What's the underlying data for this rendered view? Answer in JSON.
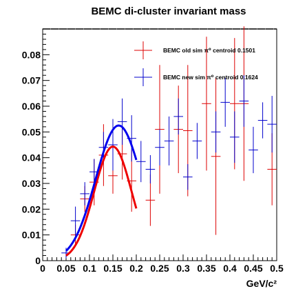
{
  "chart_data": {
    "type": "scatter",
    "title": "BEMC di-cluster invariant mass",
    "xlabel": "GeV/c²",
    "ylabel": "",
    "xlim": [
      0,
      0.5
    ],
    "ylim": [
      0,
      0.09
    ],
    "x_ticks": [
      0,
      0.05,
      0.1,
      0.15,
      0.2,
      0.25,
      0.3,
      0.35,
      0.4,
      0.45,
      0.5
    ],
    "x_tick_labels": [
      "0",
      "0.05",
      "0.1",
      "0.15",
      "0.2",
      "0.25",
      "0.3",
      "0.35",
      "0.4",
      "0.45",
      "0.5"
    ],
    "y_ticks": [
      0,
      0.01,
      0.02,
      0.03,
      0.04,
      0.05,
      0.06,
      0.07,
      0.08
    ],
    "y_tick_labels": [
      "0",
      "0.01",
      "0.02",
      "0.03",
      "0.04",
      "0.05",
      "0.06",
      "0.07",
      "0.08"
    ],
    "legend_position": "top-right",
    "series": [
      {
        "name": "BEMC old sim π⁰ centroid 0.1501",
        "color": "#dd0000",
        "bin_half_width": 0.01,
        "points": [
          {
            "x": 0.07,
            "y": 0.01,
            "yerr": 0.004
          },
          {
            "x": 0.09,
            "y": 0.024,
            "yerr": 0.005
          },
          {
            "x": 0.11,
            "y": 0.0305,
            "yerr": 0.009
          },
          {
            "x": 0.13,
            "y": 0.041,
            "yerr": 0.012
          },
          {
            "x": 0.15,
            "y": 0.033,
            "yerr": 0.007
          },
          {
            "x": 0.17,
            "y": 0.0415,
            "yerr": 0.01
          },
          {
            "x": 0.19,
            "y": 0.031,
            "yerr": 0.012
          },
          {
            "x": 0.23,
            "y": 0.0235,
            "yerr": 0.01
          },
          {
            "x": 0.25,
            "y": 0.051,
            "yerr": 0.025
          },
          {
            "x": 0.29,
            "y": 0.051,
            "yerr": 0.017
          },
          {
            "x": 0.31,
            "y": 0.0505,
            "yerr": 0.0255
          },
          {
            "x": 0.35,
            "y": 0.061,
            "yerr": 0.026
          },
          {
            "x": 0.37,
            "y": 0.0405,
            "yerr": 0.0305
          },
          {
            "x": 0.41,
            "y": 0.061,
            "yerr": 0.0255
          },
          {
            "x": 0.43,
            "y": 0.061,
            "yerr": 0.03
          },
          {
            "x": 0.49,
            "y": 0.0355,
            "yerr": 0.014
          }
        ]
      },
      {
        "name": "BEMC new sim π⁰ centroid 0.1624",
        "color": "#0000cc",
        "bin_half_width": 0.01,
        "points": [
          {
            "x": 0.05,
            "y": 0.003,
            "yerr": 0.002
          },
          {
            "x": 0.07,
            "y": 0.0155,
            "yerr": 0.0055
          },
          {
            "x": 0.09,
            "y": 0.026,
            "yerr": 0.0045
          },
          {
            "x": 0.11,
            "y": 0.0345,
            "yerr": 0.005
          },
          {
            "x": 0.13,
            "y": 0.044,
            "yerr": 0.006
          },
          {
            "x": 0.15,
            "y": 0.045,
            "yerr": 0.01
          },
          {
            "x": 0.17,
            "y": 0.054,
            "yerr": 0.009
          },
          {
            "x": 0.19,
            "y": 0.0475,
            "yerr": 0.009
          },
          {
            "x": 0.21,
            "y": 0.0385,
            "yerr": 0.008
          },
          {
            "x": 0.23,
            "y": 0.0355,
            "yerr": 0.0055
          },
          {
            "x": 0.25,
            "y": 0.044,
            "yerr": 0.007
          },
          {
            "x": 0.27,
            "y": 0.0465,
            "yerr": 0.0095
          },
          {
            "x": 0.29,
            "y": 0.056,
            "yerr": 0.007
          },
          {
            "x": 0.31,
            "y": 0.0325,
            "yerr": 0.005
          },
          {
            "x": 0.33,
            "y": 0.0465,
            "yerr": 0.007
          },
          {
            "x": 0.37,
            "y": 0.05,
            "yerr": 0.008
          },
          {
            "x": 0.39,
            "y": 0.0615,
            "yerr": 0.0095
          },
          {
            "x": 0.41,
            "y": 0.048,
            "yerr": 0.01
          },
          {
            "x": 0.43,
            "y": 0.062,
            "yerr": 0.01
          },
          {
            "x": 0.45,
            "y": 0.043,
            "yerr": 0.009
          },
          {
            "x": 0.47,
            "y": 0.0545,
            "yerr": 0.007
          },
          {
            "x": 0.49,
            "y": 0.053,
            "yerr": 0.011
          }
        ]
      }
    ],
    "fits": [
      {
        "name": "old sim fit",
        "color": "#ee0000",
        "xrange": [
          0.05,
          0.2
        ],
        "amplitude": 0.0443,
        "mean": 0.15,
        "sigma": 0.04
      },
      {
        "name": "new sim fit",
        "color": "#0000ee",
        "xrange": [
          0.05,
          0.2
        ],
        "amplitude": 0.0525,
        "mean": 0.1624,
        "sigma": 0.049
      }
    ]
  }
}
